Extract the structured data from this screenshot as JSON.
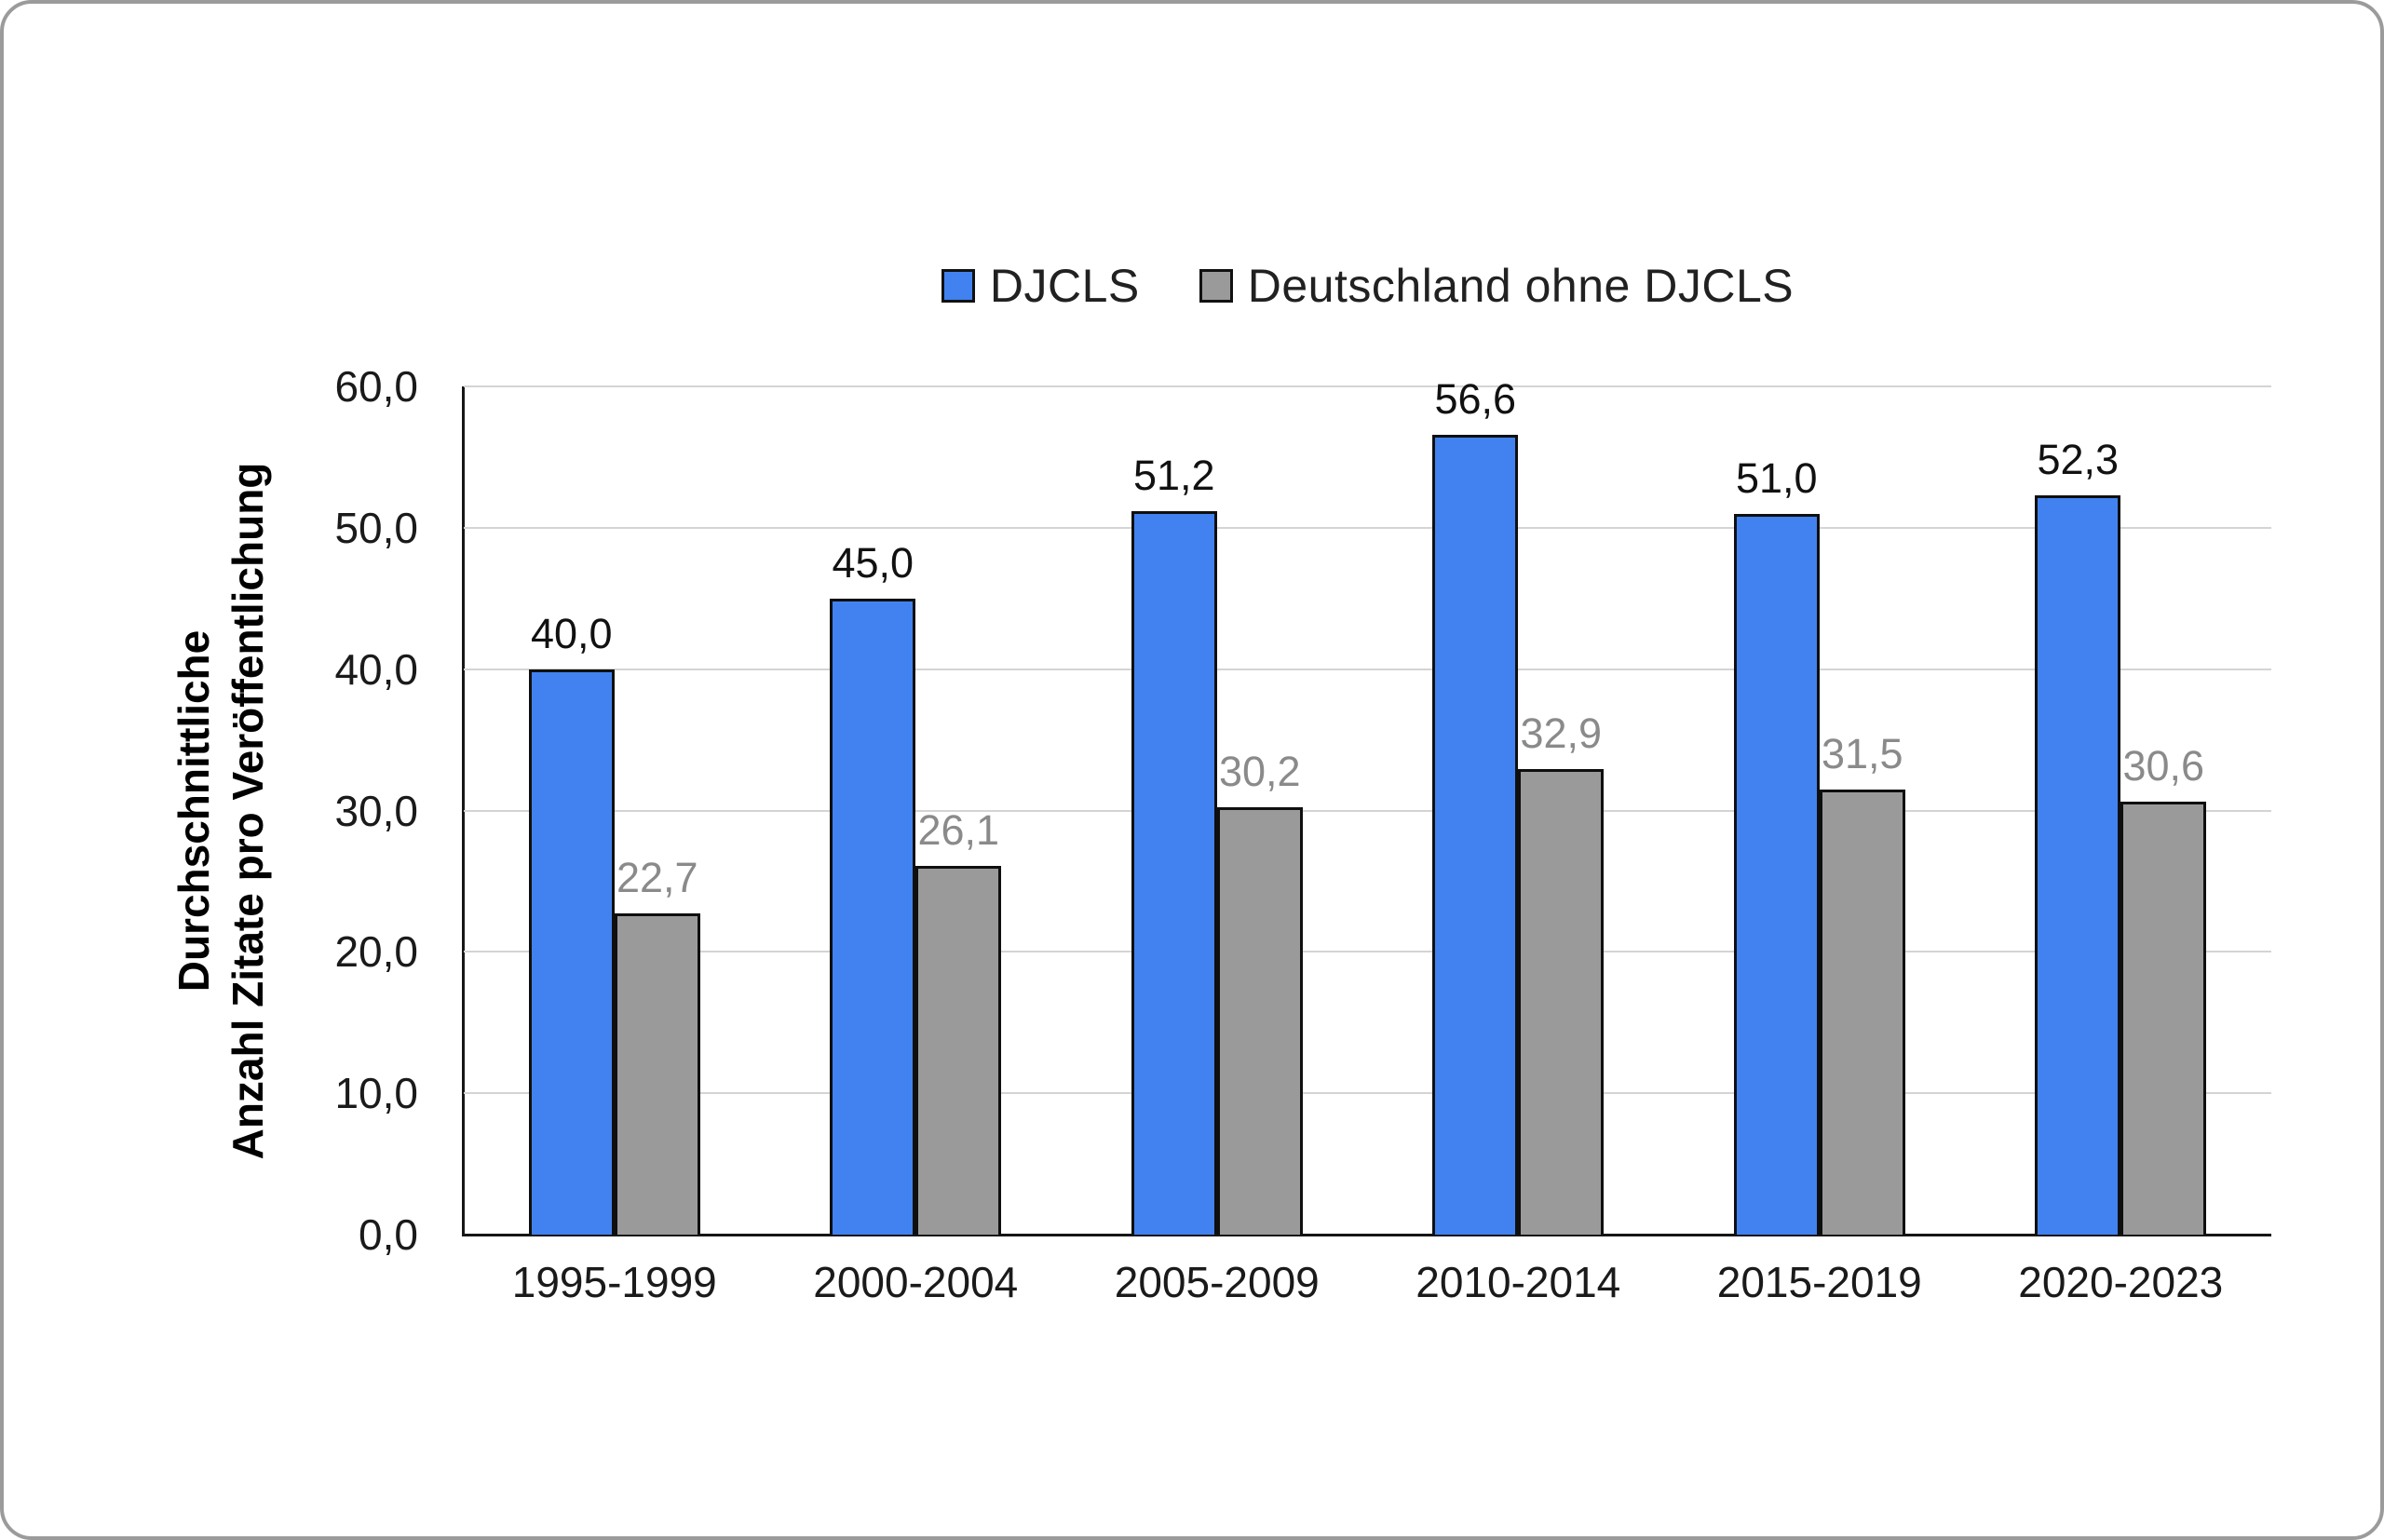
{
  "legend": {
    "items": [
      {
        "label": "DJCLS",
        "color": "#4182F0"
      },
      {
        "label": "Deutschland ohne DJCLS",
        "color": "#9A9A9A"
      }
    ]
  },
  "y_axis": {
    "title_line1": "Durchschnittliche",
    "title_line2": "Anzahl Zitate pro Veröffentlichung",
    "ticks": [
      "60,0",
      "50,0",
      "40,0",
      "30,0",
      "20,0",
      "10,0",
      "0,0"
    ]
  },
  "chart_data": {
    "type": "bar",
    "categories": [
      "1995-1999",
      "2000-2004",
      "2005-2009",
      "2010-2014",
      "2015-2019",
      "2020-2023"
    ],
    "series": [
      {
        "name": "DJCLS",
        "color": "#4182F0",
        "values": [
          40.0,
          45.0,
          51.2,
          56.6,
          51.0,
          52.3
        ],
        "labels": [
          "40,0",
          "45,0",
          "51,2",
          "56,6",
          "51,0",
          "52,3"
        ],
        "label_color": "#111111"
      },
      {
        "name": "Deutschland ohne DJCLS",
        "color": "#9A9A9A",
        "values": [
          22.7,
          26.1,
          30.2,
          32.9,
          31.5,
          30.6
        ],
        "labels": [
          "22,7",
          "26,1",
          "30,2",
          "32,9",
          "31,5",
          "30,6"
        ],
        "label_color": "#8a8a8a"
      }
    ],
    "title": "",
    "xlabel": "",
    "ylabel": "Durchschnittliche Anzahl Zitate pro Veröffentlichung",
    "ylim": [
      0,
      60
    ],
    "ytick_step": 10,
    "grid": true,
    "legend_position": "top"
  }
}
